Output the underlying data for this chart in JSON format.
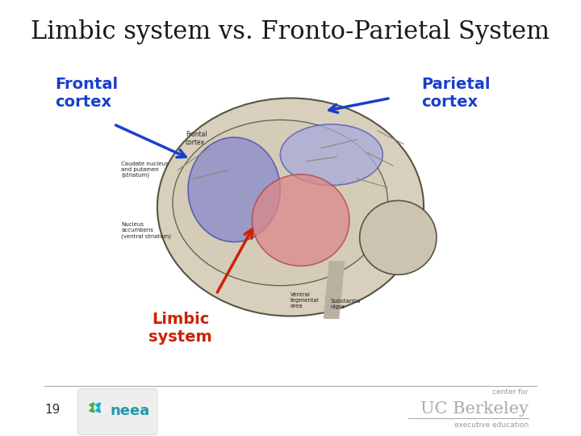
{
  "title": "Limbic system vs. Fronto-Parietal System",
  "title_fontsize": 22,
  "title_color": "#1a1a1a",
  "title_font": "serif",
  "bg_color": "#ffffff",
  "label_frontal_cortex": "Frontal\ncortex",
  "label_parietal_cortex": "Parietal\ncortex",
  "label_limbic_system": "Limbic\nsystem",
  "label_color_blue": "#1a3fcc",
  "label_color_red": "#cc2200",
  "footer_number": "19",
  "footer_ucb_text": "UC Berkeley",
  "footer_ucb_sub": "executive education",
  "footer_ucb_pre": "center for"
}
